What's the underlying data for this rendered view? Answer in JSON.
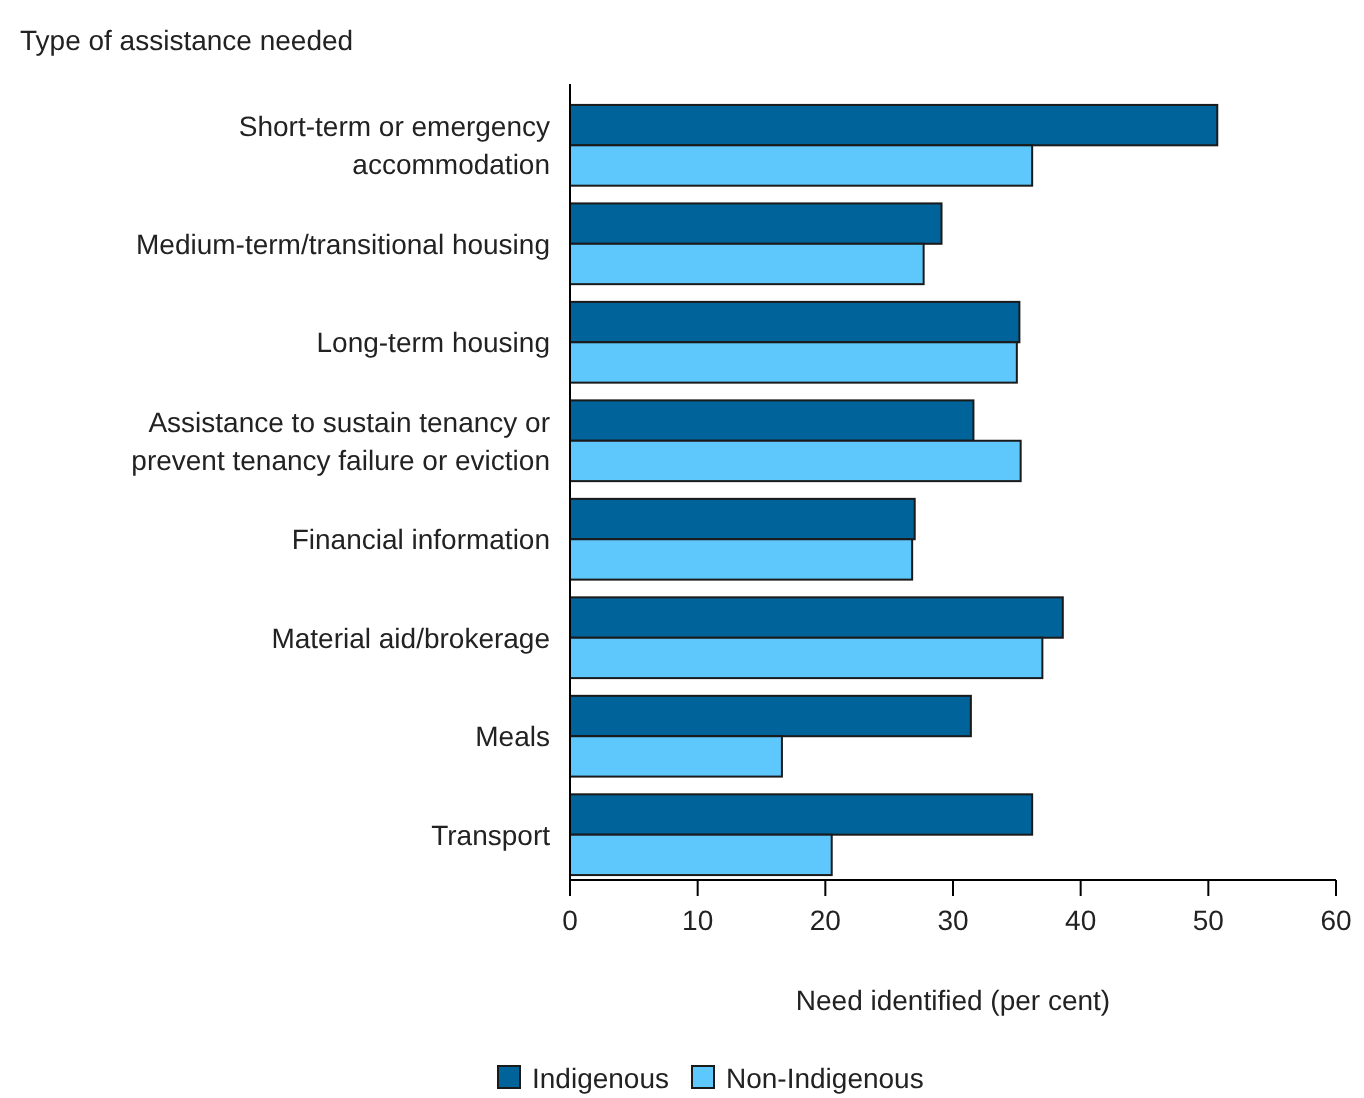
{
  "chart_data": {
    "type": "bar",
    "orientation": "horizontal",
    "ylabel": "Type of assistance needed",
    "xlabel": "Need identified (per cent)",
    "categories": [
      "Short-term or emergency\naccommodation",
      "Medium-term/transitional housing",
      "Long-term housing",
      "Assistance to sustain tenancy or\nprevent tenancy failure or eviction",
      "Financial information",
      "Material aid/brokerage",
      "Meals",
      "Transport"
    ],
    "series": [
      {
        "name": "Indigenous",
        "color": "#00649a",
        "values": [
          50.7,
          29.1,
          35.2,
          31.6,
          27.0,
          38.6,
          31.4,
          36.2
        ]
      },
      {
        "name": "Non-Indigenous",
        "color": "#5ec8fd",
        "values": [
          36.2,
          27.7,
          35.0,
          35.3,
          26.8,
          37.0,
          16.6,
          20.5
        ]
      }
    ],
    "xlim": [
      0,
      60
    ],
    "xticks": [
      0,
      10,
      20,
      30,
      40,
      50,
      60
    ],
    "legend": "bottom",
    "grid": false
  }
}
